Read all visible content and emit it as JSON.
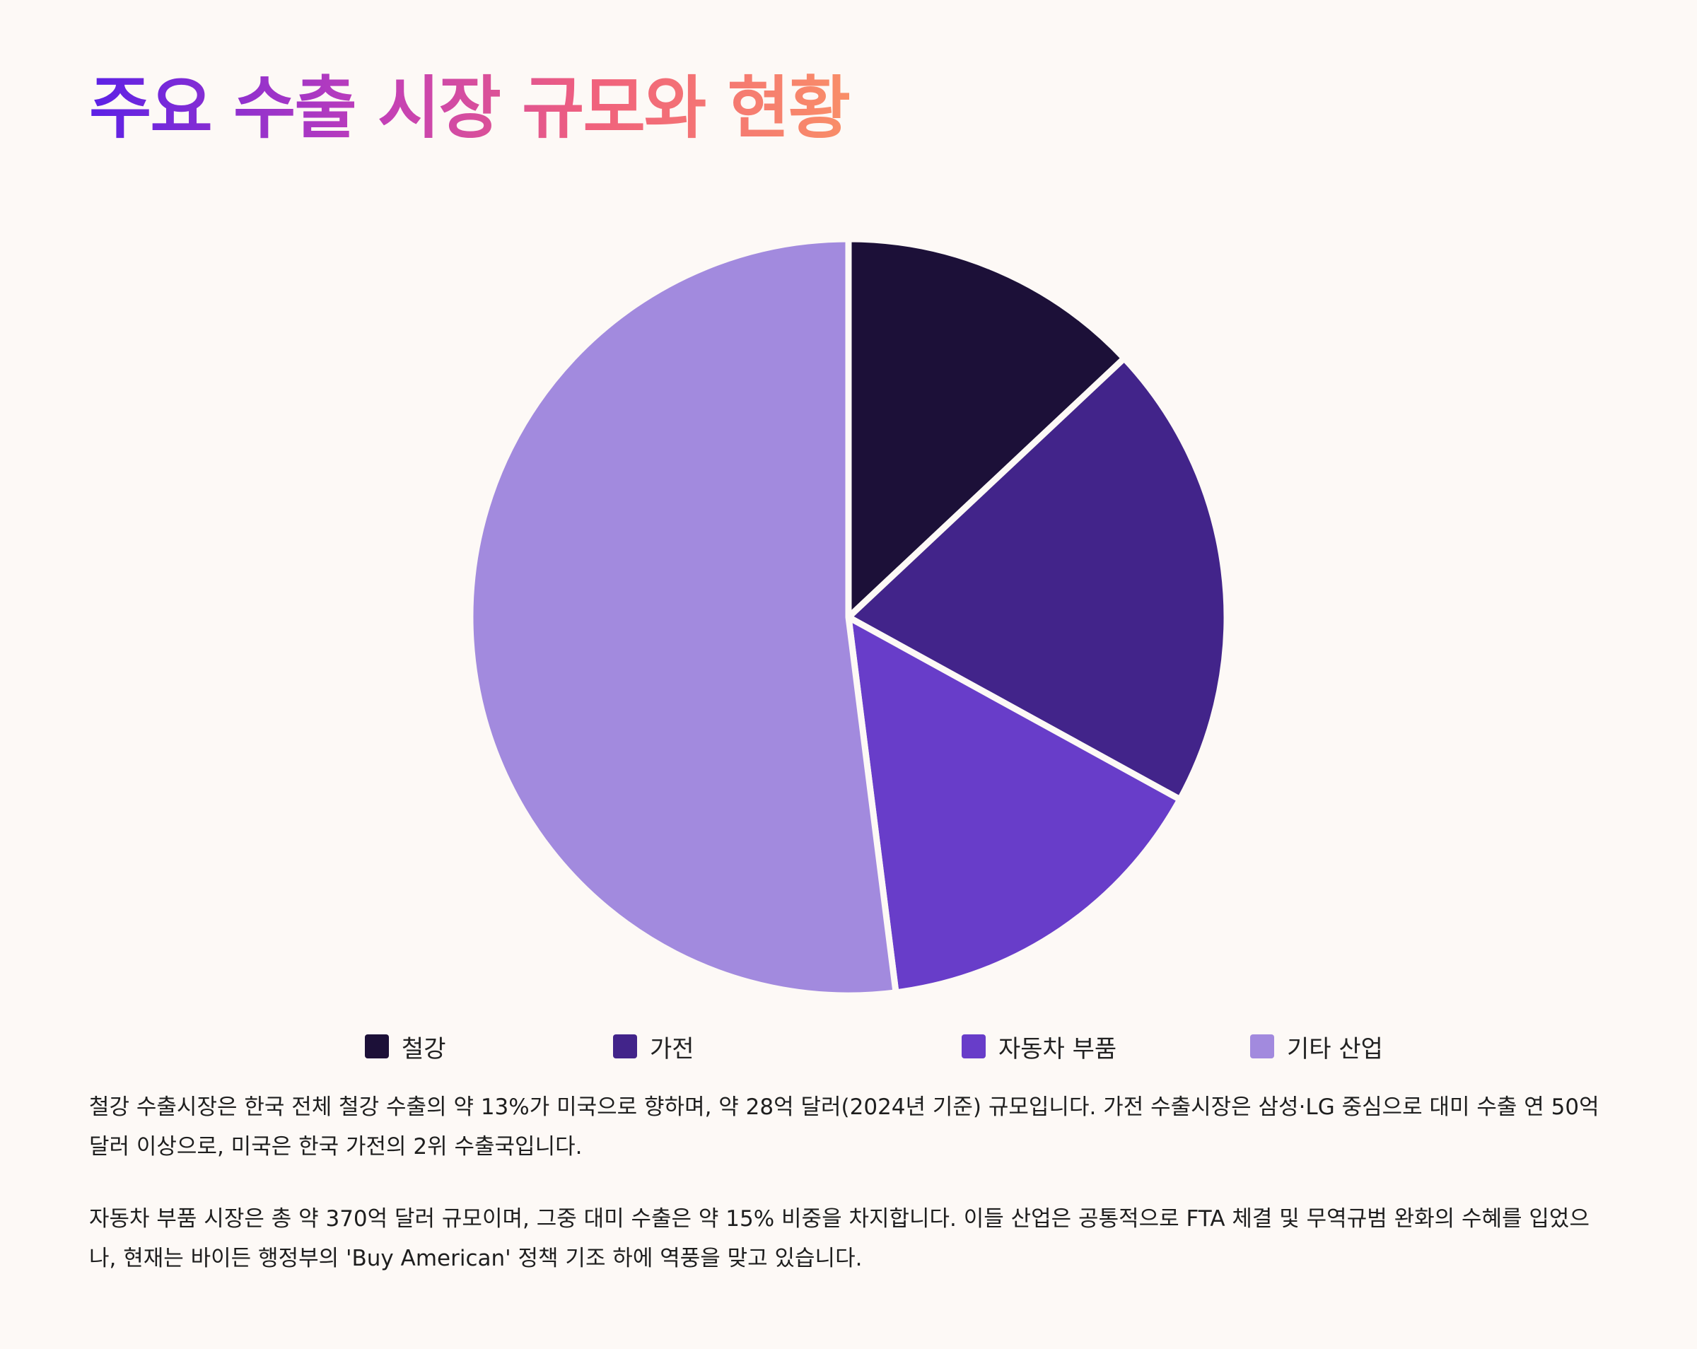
{
  "title": "주요 수출 시장 규모와 현황",
  "chart_data": {
    "type": "pie",
    "title": "",
    "categories": [
      "철강",
      "가전",
      "자동차 부품",
      "기타 산업"
    ],
    "values": [
      13,
      20,
      15,
      52
    ],
    "colors": [
      "#1c1038",
      "#42248a",
      "#683dc9",
      "#a28ade"
    ],
    "legend_position": "bottom",
    "start_angle_deg": 0,
    "direction": "clockwise"
  },
  "paragraphs": [
    "철강 수출시장은 한국 전체 철강 수출의 약 13%가 미국으로 향하며, 약 28억 달러(2024년 기준) 규모입니다. 가전 수출시장은 삼성·LG 중심으로 대미 수출 연 50억 달러 이상으로, 미국은 한국 가전의 2위 수출국입니다.",
    "자동차 부품 시장은 총 약 370억 달러 규모이며, 그중 대미 수출은 약 15% 비중을 차지합니다. 이들 산업은 공통적으로 FTA 체결 및 무역규범 완화의 수혜를 입었으나, 현재는 바이든 행정부의 'Buy American' 정책 기조 하에 역풍을 맞고 있습니다."
  ]
}
